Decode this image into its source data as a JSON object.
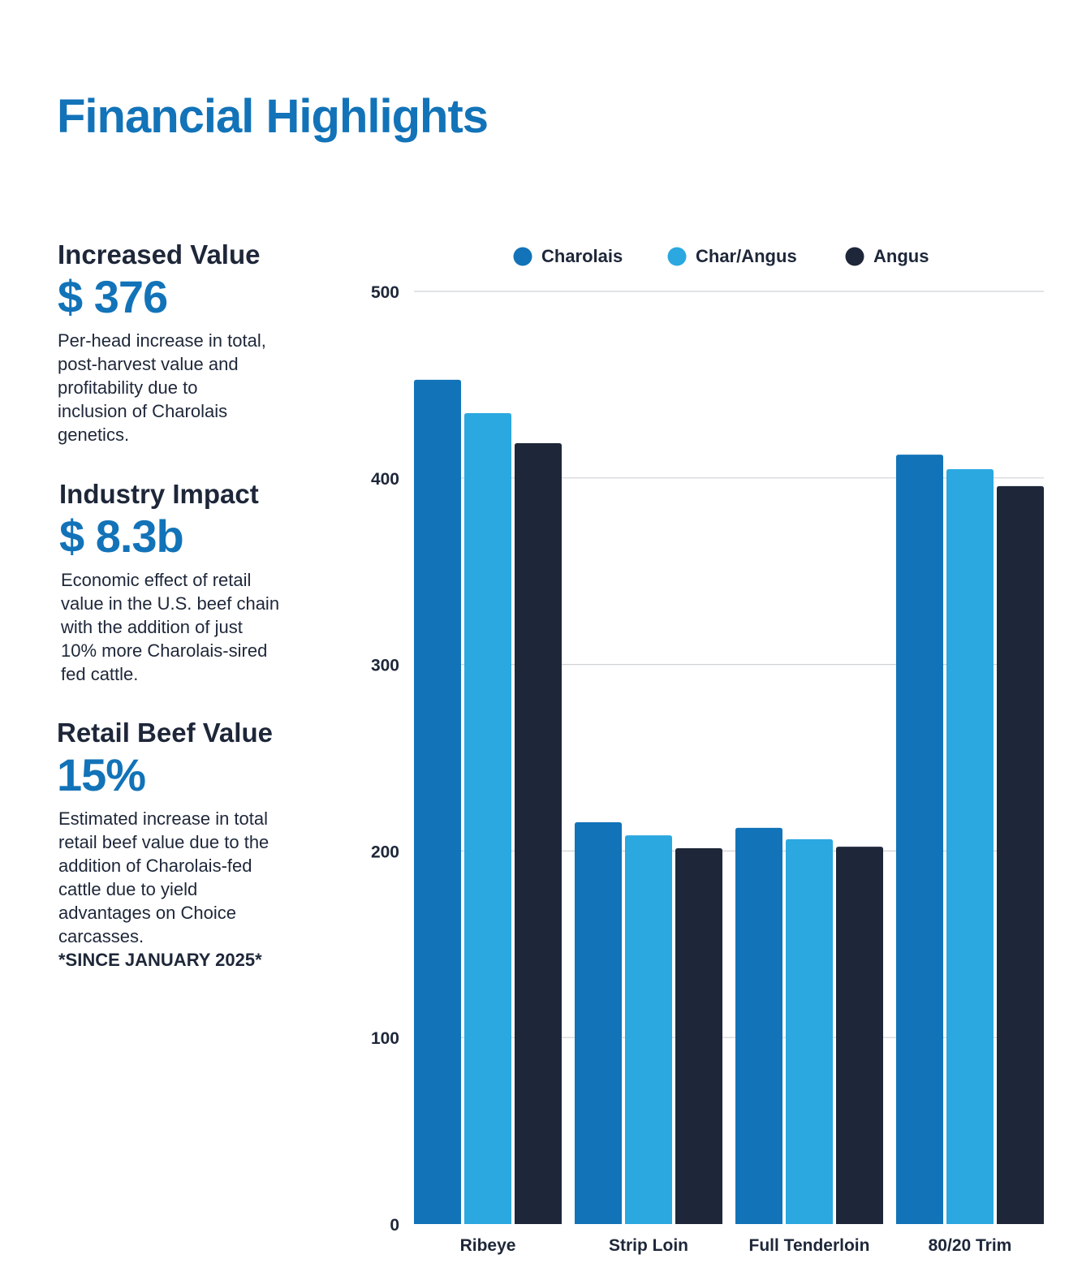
{
  "page": {
    "title": "Financial Highlights"
  },
  "highlights": [
    {
      "heading": "Increased Value",
      "value": "$ 376",
      "lines": [
        "Per-head increase in total,",
        "post-harvest value and",
        "profitability due to",
        "inclusion of Charolais",
        "genetics."
      ]
    },
    {
      "heading": "Industry Impact",
      "value": "$ 8.3b",
      "lines": [
        "Economic effect of retail",
        "value in the U.S. beef chain",
        "with the addition of just",
        "10% more Charolais-sired",
        "fed cattle."
      ]
    },
    {
      "heading": "Retail Beef Value",
      "value": "15%",
      "lines": [
        "Estimated increase in total",
        "retail beef value due to the",
        "addition of Charolais-fed",
        "cattle due to yield",
        "advantages on Choice",
        "carcasses."
      ],
      "note": "*SINCE JANUARY 2025*"
    }
  ],
  "chart_data": {
    "type": "bar",
    "categories": [
      "Ribeye",
      "Strip Loin",
      "Full Tenderloin",
      "80/20 Trim"
    ],
    "series": [
      {
        "name": "Charolais",
        "color": "#1273b8",
        "values": [
          452.6,
          215.4,
          212.4,
          412.5
        ]
      },
      {
        "name": "Char/Angus",
        "color": "#2ba8e0",
        "values": [
          434.7,
          208.4,
          206.3,
          404.7
        ]
      },
      {
        "name": "Angus",
        "color": "#1e2739",
        "values": [
          418.6,
          201.5,
          202.3,
          395.6
        ]
      }
    ],
    "ylim": [
      0,
      500
    ],
    "yticks": [
      0,
      100,
      200,
      300,
      400,
      500
    ],
    "grid": true,
    "legend": "top"
  }
}
